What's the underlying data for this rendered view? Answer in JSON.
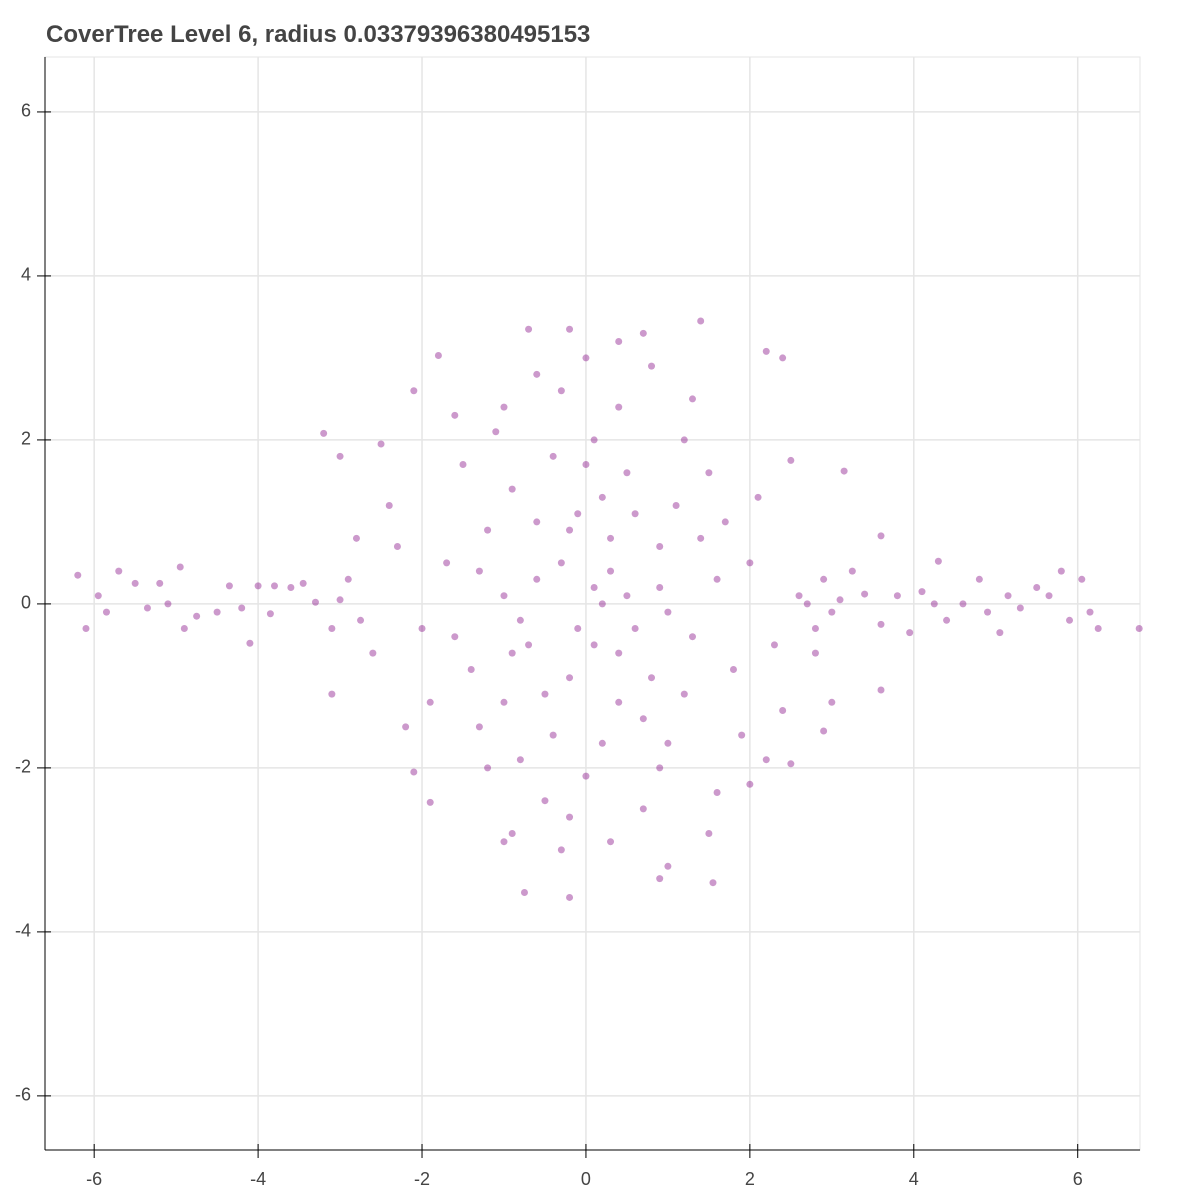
{
  "chart_data": {
    "type": "scatter",
    "title": "CoverTree Level 6, radius 0.03379396380495153",
    "x": [
      0.1,
      -0.3,
      0.4,
      -0.8,
      0.9,
      -1.2,
      1.3,
      0.2,
      -0.5,
      0.7,
      -1.4,
      1.6,
      -0.1,
      0.5,
      -0.6,
      0.3,
      -0.2,
      1.0,
      -1.0,
      0.0,
      0.6,
      -0.9,
      1.1,
      -1.3,
      0.8,
      -0.4,
      0.2,
      1.8,
      -1.7,
      1.5,
      -1.5,
      0.0,
      0.9,
      -0.8,
      2.0,
      -2.0,
      1.2,
      -1.1,
      0.4,
      -0.3,
      0.7,
      -0.5,
      2.3,
      -2.3,
      1.9,
      -1.9,
      0.3,
      -0.7,
      0.6,
      -0.2,
      0.1,
      1.4,
      -1.3,
      1.2,
      -1.0,
      0.4,
      -0.6,
      0.9,
      -0.9,
      0.2,
      -0.1,
      0.5,
      -0.4,
      1.7,
      -1.6,
      1.0,
      -1.2,
      0.1,
      -0.2,
      1.3,
      -1.0,
      2.1,
      -2.2,
      2.4,
      -2.4,
      0.3,
      -0.9,
      0.8,
      -0.6,
      2.6,
      -2.6,
      1.6,
      -1.6,
      0.0,
      0.4,
      -0.3,
      1.0,
      2.8,
      -2.8,
      0.7,
      -0.2,
      0.9,
      1.5,
      2.4,
      -2.1,
      -1.0,
      2.2,
      2.0,
      -2.1,
      2.5,
      2.9,
      -3.0,
      -3.1,
      3.0,
      2.5,
      -2.5,
      -6.2,
      -6.1,
      -5.95,
      -5.85,
      -5.7,
      -5.5,
      -5.35,
      -5.2,
      -5.1,
      -4.95,
      -4.9,
      -4.75,
      -4.5,
      -4.35,
      -4.2,
      -4.1,
      -4.0,
      -3.85,
      -3.8,
      -3.6,
      -3.45,
      -3.3,
      -3.1,
      -3.0,
      -2.9,
      -2.75,
      2.7,
      2.8,
      2.9,
      3.0,
      3.1,
      3.25,
      3.4,
      3.6,
      3.8,
      3.95,
      4.1,
      4.25,
      4.4,
      4.6,
      4.8,
      4.9,
      5.05,
      5.15,
      5.3,
      5.5,
      5.65,
      5.8,
      5.9,
      6.05,
      6.15,
      6.25,
      6.75,
      1.4,
      -0.7,
      -0.2,
      -0.75,
      3.15,
      2.2,
      -1.8,
      -3.2,
      1.55,
      3.6,
      -1.9,
      3.6,
      4.3
    ],
    "values": [
      0.2,
      0.5,
      -0.6,
      -0.2,
      0.7,
      0.9,
      -0.4,
      1.3,
      -1.1,
      -1.4,
      -0.8,
      0.3,
      -0.3,
      0.1,
      0.3,
      0.8,
      -0.9,
      -0.1,
      0.1,
      1.7,
      1.1,
      1.4,
      1.2,
      -1.5,
      -0.9,
      1.8,
      -1.7,
      -0.8,
      0.5,
      1.6,
      1.7,
      -2.1,
      -2.0,
      -1.9,
      0.5,
      -0.3,
      2.0,
      2.1,
      2.4,
      2.6,
      -2.5,
      -2.4,
      -0.5,
      0.7,
      -1.6,
      -1.2,
      0.4,
      -0.5,
      -0.3,
      0.9,
      -0.5,
      0.8,
      0.4,
      -1.1,
      -1.2,
      -1.2,
      1.0,
      0.2,
      -0.6,
      0.0,
      1.1,
      1.6,
      -1.6,
      1.0,
      -0.4,
      -1.7,
      -2.0,
      2.0,
      -2.6,
      2.5,
      2.4,
      1.3,
      -1.5,
      -1.3,
      1.2,
      -2.9,
      -2.8,
      2.9,
      2.8,
      0.1,
      -0.6,
      -2.3,
      2.3,
      3.0,
      3.2,
      -3.0,
      -3.2,
      -0.6,
      0.8,
      3.3,
      3.35,
      -3.35,
      -2.8,
      3.0,
      2.6,
      -2.9,
      -1.9,
      -2.2,
      -2.05,
      1.75,
      -1.55,
      1.8,
      -1.1,
      -1.2,
      -1.95,
      1.95,
      0.35,
      -0.3,
      0.1,
      -0.1,
      0.4,
      0.25,
      -0.05,
      0.25,
      0.0,
      0.45,
      -0.3,
      -0.15,
      -0.1,
      0.22,
      -0.05,
      -0.48,
      0.22,
      -0.12,
      0.22,
      0.2,
      0.25,
      0.02,
      -0.3,
      0.05,
      0.3,
      -0.2,
      0.0,
      -0.3,
      0.3,
      -0.1,
      0.05,
      0.4,
      0.12,
      -0.25,
      0.1,
      -0.35,
      0.15,
      0.0,
      -0.2,
      0.0,
      0.3,
      -0.1,
      -0.35,
      0.1,
      -0.05,
      0.2,
      0.1,
      0.4,
      -0.2,
      0.3,
      -0.1,
      -0.3,
      -0.3,
      3.45,
      3.35,
      -3.58,
      -3.52,
      1.62,
      3.08,
      3.03,
      2.08,
      -3.4,
      -1.05,
      -2.42,
      0.83,
      0.52
    ],
    "color": "#800080",
    "alpha": 0.4,
    "xlim": [
      -6.6,
      6.76
    ],
    "ylim": [
      -6.66,
      6.67
    ],
    "xticks": [
      -6,
      -4,
      -2,
      0,
      2,
      4,
      6
    ],
    "yticks": [
      -6,
      -4,
      -2,
      0,
      2,
      4,
      6
    ],
    "grid": true
  }
}
